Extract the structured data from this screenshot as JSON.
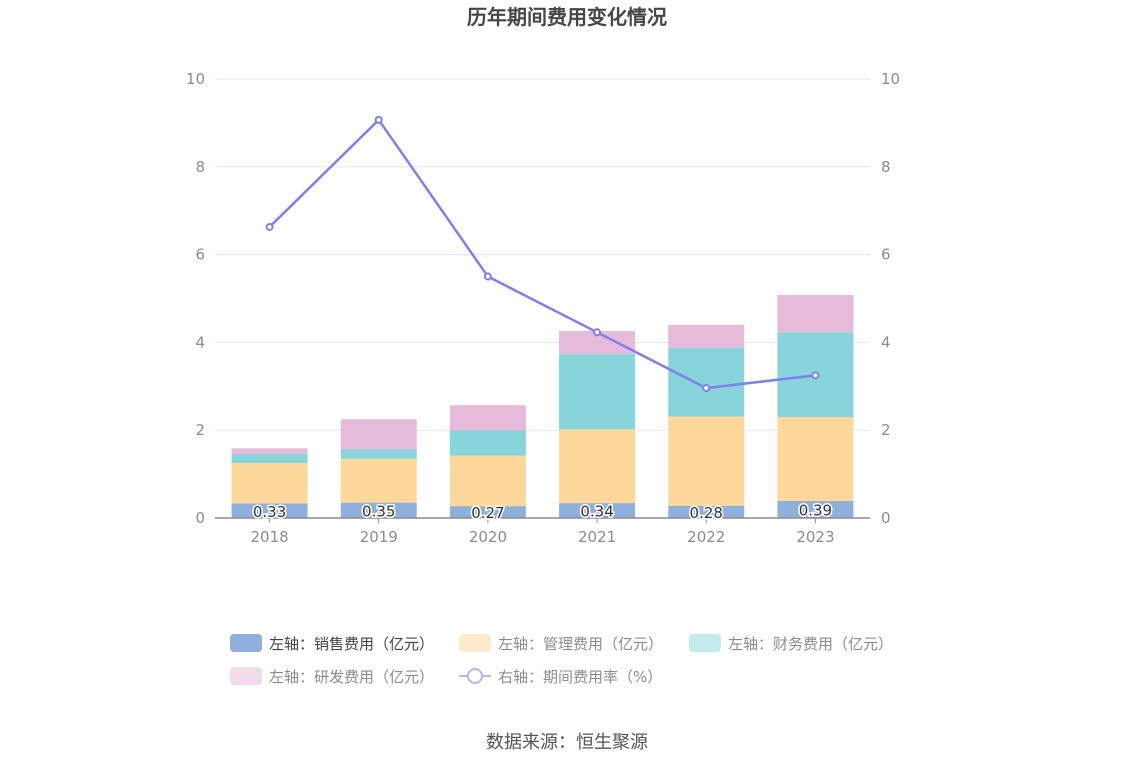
{
  "chart_data": {
    "type": "bar",
    "title": "历年期间费用变化情况",
    "categories": [
      "2018",
      "2019",
      "2020",
      "2021",
      "2022",
      "2023"
    ],
    "stacked": true,
    "series": [
      {
        "name": "左轴：销售费用（亿元）",
        "axis": "left",
        "type": "bar",
        "color": "#8fafdc",
        "values": [
          0.33,
          0.35,
          0.27,
          0.34,
          0.28,
          0.39
        ],
        "labels": [
          "0.33",
          "0.35",
          "0.27",
          "0.34",
          "0.28",
          "0.39"
        ]
      },
      {
        "name": "左轴：管理费用（亿元）",
        "axis": "left",
        "type": "bar",
        "color": "#fed89b",
        "values": [
          0.92,
          1.0,
          1.15,
          1.68,
          2.03,
          1.91
        ]
      },
      {
        "name": "左轴：财务费用（亿元）",
        "axis": "left",
        "type": "bar",
        "color": "#87d5db",
        "values": [
          0.21,
          0.21,
          0.58,
          1.72,
          1.57,
          1.93
        ]
      },
      {
        "name": "左轴：研发费用（亿元）",
        "axis": "left",
        "type": "bar",
        "color": "#e6bad9",
        "values": [
          0.13,
          0.69,
          0.57,
          0.52,
          0.52,
          0.85
        ]
      },
      {
        "name": "右轴：期间费用率（%）",
        "axis": "right",
        "type": "line",
        "color": "#7f7ff0",
        "values": [
          6.63,
          9.07,
          5.5,
          4.23,
          2.96,
          3.25
        ]
      }
    ],
    "y_left": {
      "ylim": [
        0,
        10
      ],
      "ticks": [
        "0",
        "2",
        "4",
        "6",
        "8",
        "10"
      ]
    },
    "y_right": {
      "ylim": [
        0,
        10
      ],
      "ticks": [
        "0",
        "2",
        "4",
        "6",
        "8",
        "10"
      ]
    },
    "grid": true,
    "legend_position": "bottom"
  },
  "source": "数据来源：恒生聚源"
}
